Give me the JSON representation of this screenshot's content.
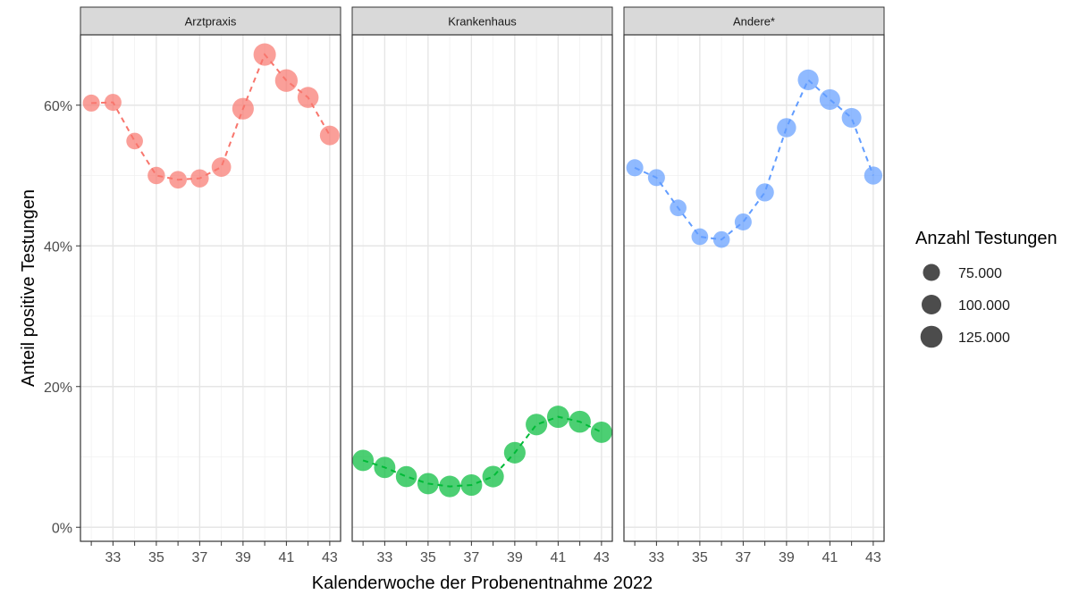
{
  "chart_data": {
    "type": "scatter",
    "ylabel": "Anteil positive Testungen",
    "xlabel": "Kalenderwoche der Probenentnahme 2022",
    "xlim": [
      31.5,
      43.5
    ],
    "ylim": [
      -0.02,
      0.7
    ],
    "y_ticks": [
      0,
      0.2,
      0.4,
      0.6
    ],
    "y_tick_labels": [
      "0%",
      "20%",
      "40%",
      "60%"
    ],
    "x_ticks": [
      33,
      35,
      37,
      39,
      41,
      43
    ],
    "x_tick_labels": [
      "33",
      "35",
      "37",
      "39",
      "41",
      "43"
    ],
    "grid": true,
    "line_style": "dashed",
    "facets": [
      {
        "name": "Arztpraxis",
        "color": "#F8766D",
        "x": [
          32,
          33,
          34,
          35,
          36,
          37,
          38,
          39,
          40,
          41,
          42,
          43
        ],
        "y": [
          0.603,
          0.604,
          0.549,
          0.5,
          0.494,
          0.496,
          0.512,
          0.595,
          0.672,
          0.635,
          0.611,
          0.557
        ],
        "n": [
          75000,
          75000,
          72000,
          78000,
          80000,
          86000,
          98000,
          120000,
          130000,
          132000,
          115000,
          100000
        ]
      },
      {
        "name": "Krankenhaus",
        "color": "#00BA38",
        "x": [
          32,
          33,
          34,
          35,
          36,
          37,
          38,
          39,
          40,
          41,
          42,
          43
        ],
        "y": [
          0.095,
          0.085,
          0.072,
          0.062,
          0.058,
          0.06,
          0.072,
          0.106,
          0.146,
          0.157,
          0.15,
          0.135
        ],
        "n": [
          118000,
          118000,
          115000,
          118000,
          120000,
          120000,
          120000,
          120000,
          120000,
          128000,
          125000,
          118000
        ]
      },
      {
        "name": "Andere*",
        "color": "#619CFF",
        "x": [
          32,
          33,
          34,
          35,
          36,
          37,
          38,
          39,
          40,
          41,
          42,
          43
        ],
        "y": [
          0.511,
          0.497,
          0.454,
          0.413,
          0.409,
          0.434,
          0.476,
          0.568,
          0.636,
          0.608,
          0.582,
          0.5
        ],
        "n": [
          75000,
          75000,
          72000,
          72000,
          72000,
          75000,
          85000,
          95000,
          112000,
          110000,
          100000,
          85000
        ]
      }
    ],
    "legend": {
      "title": "Anzahl Testungen",
      "position": "right",
      "items": [
        {
          "label": "75.000",
          "n": 75000
        },
        {
          "label": "100.000",
          "n": 100000
        },
        {
          "label": "125.000",
          "n": 125000
        }
      ]
    }
  }
}
